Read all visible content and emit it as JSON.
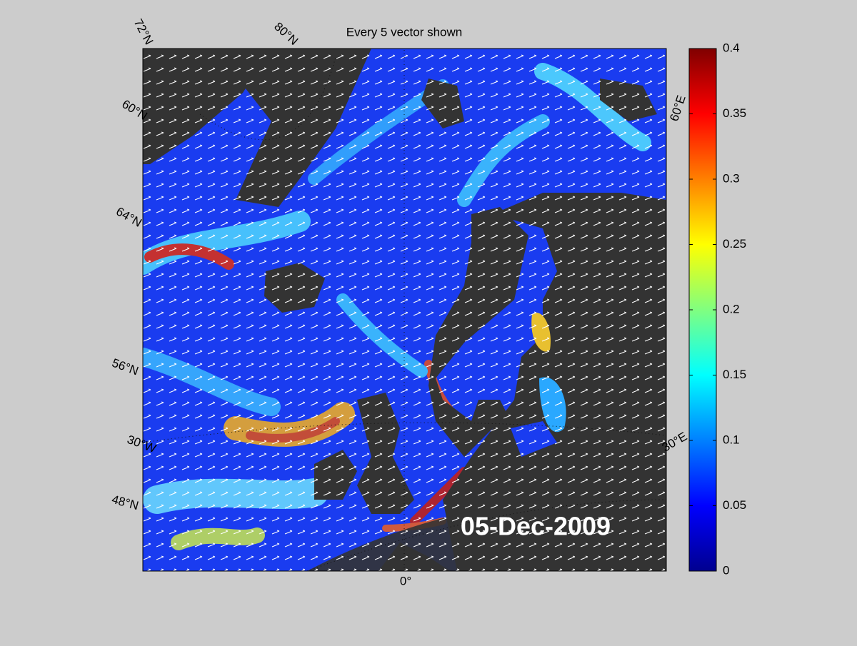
{
  "title": "Every 5 vector shown",
  "date": "05-Dec-2009",
  "graticule_labels": [
    "72°N",
    "80°N",
    "60°N",
    "64°N",
    "56°N",
    "30°W",
    "48°N",
    "0°",
    "30°E",
    "60°E"
  ],
  "colorbar": {
    "colormap": "jet",
    "lim": [
      0,
      0.4
    ],
    "ticks": [
      0,
      0.05,
      0.1,
      0.15,
      0.2,
      0.25,
      0.3,
      0.35,
      0.4
    ]
  }
}
